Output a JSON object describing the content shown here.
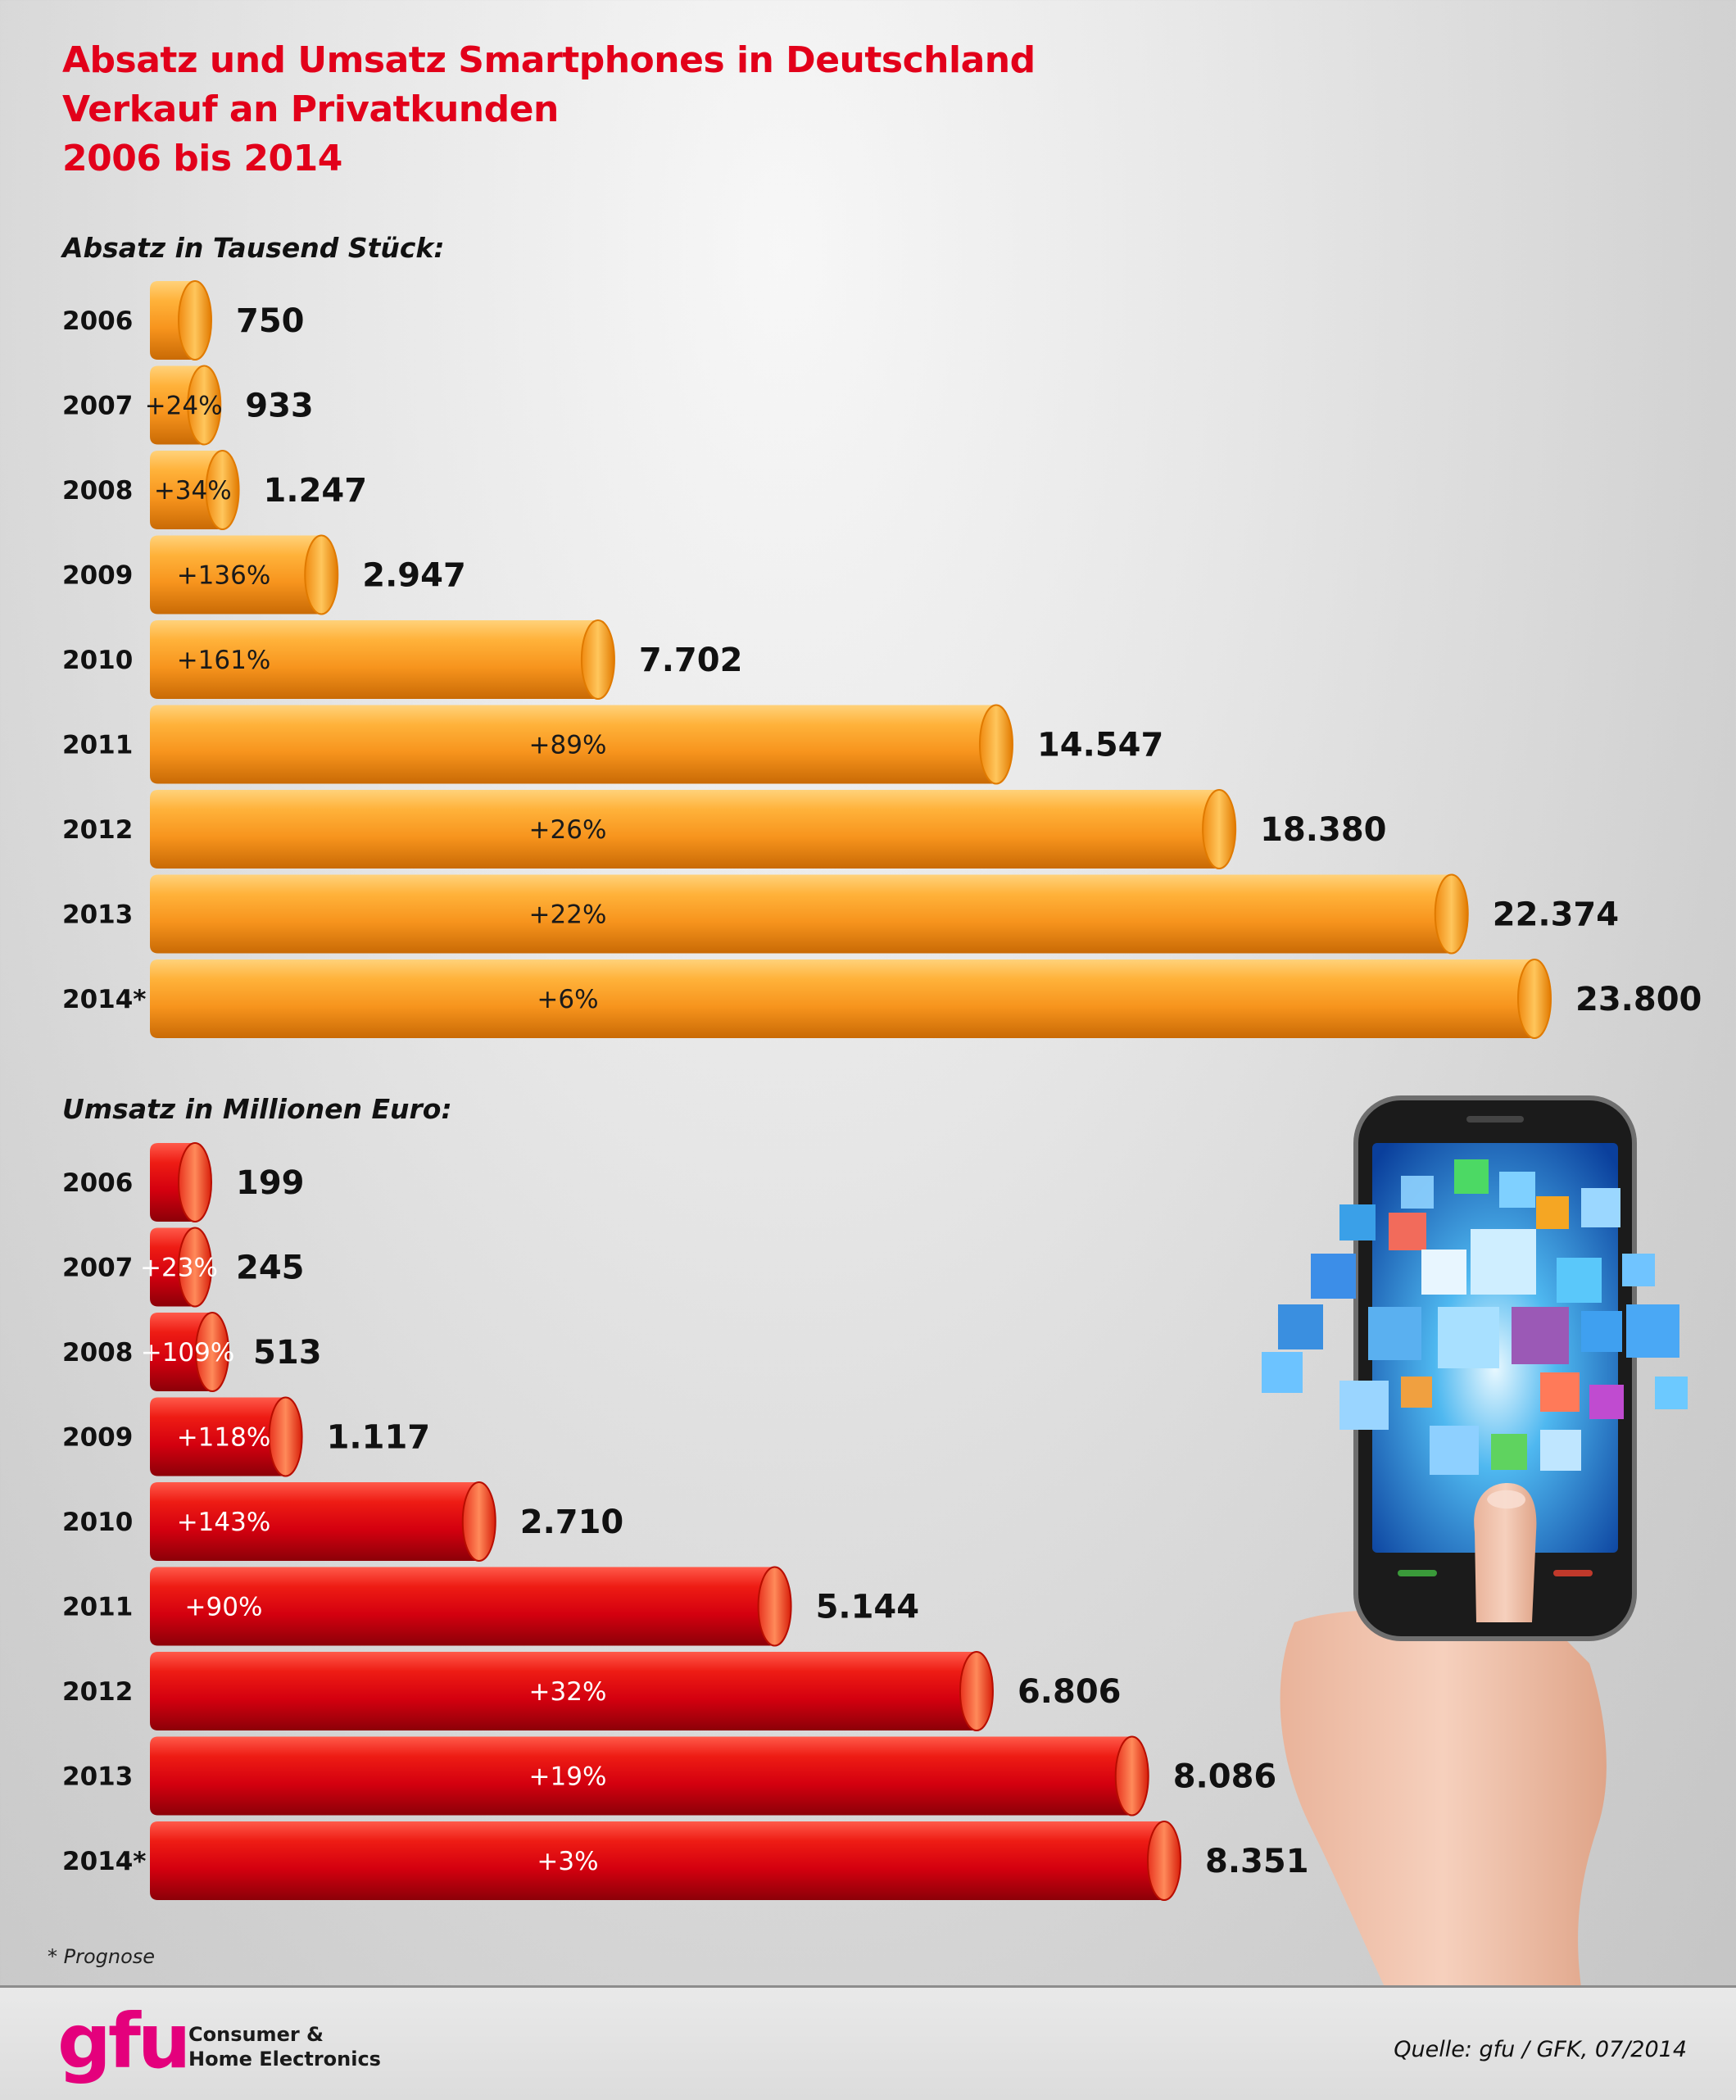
{
  "title": {
    "line1": "Absatz und Umsatz Smartphones in Deutschland",
    "line2": "Verkauf an Privatkunden",
    "line3": "2006 bis 2014"
  },
  "footnote": "* Prognose",
  "footer": {
    "logo_word": "gfu",
    "logo_line1": "Consumer &",
    "logo_line2": "Home Electronics",
    "source": "Quelle: gfu / GFK, 07/2014"
  },
  "colors": {
    "title": "#e2001a",
    "absatz_bar": "#f7941d",
    "umsatz_bar": "#d4000f",
    "logo": "#e4007c"
  },
  "illustration": "hand-holding-smartphone-with-app-icons",
  "chart_data": [
    {
      "type": "bar",
      "orientation": "horizontal",
      "title": "Absatz in Tausend Stück:",
      "categories": [
        "2006",
        "2007",
        "2008",
        "2009",
        "2010",
        "2011",
        "2012",
        "2013",
        "2014*"
      ],
      "values": [
        750,
        933,
        1247,
        2947,
        7702,
        14547,
        18380,
        22374,
        23800
      ],
      "value_labels": [
        "750",
        "933",
        "1.247",
        "2.947",
        "7.702",
        "14.547",
        "18.380",
        "22.374",
        "23.800"
      ],
      "change_labels": [
        "",
        "+24%",
        "+34%",
        "+136%",
        "+161%",
        "+89%",
        "+26%",
        "+22%",
        "+6%"
      ],
      "xlim": [
        0,
        23800
      ],
      "grid": false,
      "legend": "none"
    },
    {
      "type": "bar",
      "orientation": "horizontal",
      "title": "Umsatz in Millionen Euro:",
      "categories": [
        "2006",
        "2007",
        "2008",
        "2009",
        "2010",
        "2011",
        "2012",
        "2013",
        "2014*"
      ],
      "values": [
        199,
        245,
        513,
        1117,
        2710,
        5144,
        6806,
        8086,
        8351
      ],
      "value_labels": [
        "199",
        "245",
        "513",
        "1.117",
        "2.710",
        "5.144",
        "6.806",
        "8.086",
        "8.351"
      ],
      "change_labels": [
        "",
        "+23%",
        "+109%",
        "+118%",
        "+143%",
        "+90%",
        "+32%",
        "+19%",
        "+3%"
      ],
      "xlim": [
        0,
        8351
      ],
      "grid": false,
      "legend": "none"
    }
  ]
}
